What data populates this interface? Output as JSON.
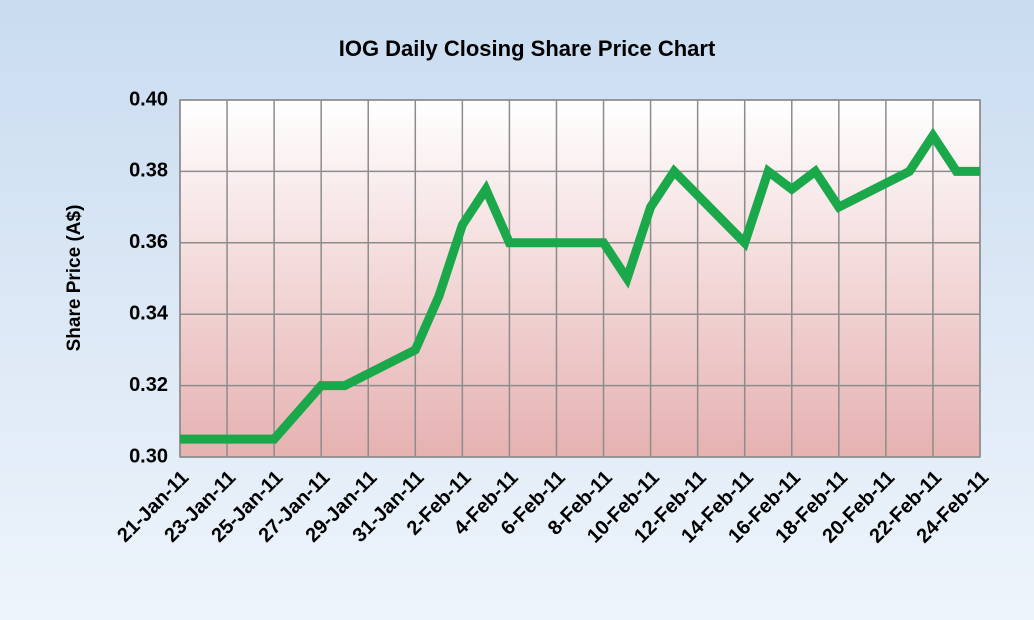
{
  "chart_data": {
    "type": "line",
    "title": "IOG Daily Closing Share Price Chart",
    "y_label": "Share Price (A$)",
    "x": [
      "21-Jan-11",
      "24-Jan-11",
      "25-Jan-11",
      "27-Jan-11",
      "28-Jan-11",
      "31-Jan-11",
      "1-Feb-11",
      "2-Feb-11",
      "3-Feb-11",
      "4-Feb-11",
      "7-Feb-11",
      "8-Feb-11",
      "9-Feb-11",
      "10-Feb-11",
      "11-Feb-11",
      "14-Feb-11",
      "15-Feb-11",
      "16-Feb-11",
      "17-Feb-11",
      "18-Feb-11",
      "21-Feb-11",
      "22-Feb-11",
      "23-Feb-11",
      "24-Feb-11"
    ],
    "series": [
      {
        "name": "IOG",
        "color": "#1aa84a",
        "values": [
          0.305,
          0.305,
          0.305,
          0.32,
          0.32,
          0.33,
          0.345,
          0.365,
          0.375,
          0.36,
          0.36,
          0.36,
          0.35,
          0.37,
          0.38,
          0.36,
          0.38,
          0.375,
          0.38,
          0.37,
          0.38,
          0.39,
          0.38,
          0.38
        ]
      }
    ],
    "xlim": [
      "21-Jan-11",
      "24-Feb-11"
    ],
    "xticks": [
      "21-Jan-11",
      "23-Jan-11",
      "25-Jan-11",
      "27-Jan-11",
      "29-Jan-11",
      "31-Jan-11",
      "2-Feb-11",
      "4-Feb-11",
      "6-Feb-11",
      "8-Feb-11",
      "10-Feb-11",
      "12-Feb-11",
      "14-Feb-11",
      "16-Feb-11",
      "18-Feb-11",
      "20-Feb-11",
      "22-Feb-11",
      "24-Feb-11"
    ],
    "ylim": [
      0.3,
      0.4
    ],
    "yticks": [
      {
        "value": 0.3,
        "label": "0.30"
      },
      0.32,
      0.34,
      0.36,
      0.38,
      {
        "value": 0.4,
        "label": "0.40"
      }
    ],
    "grid": true
  }
}
